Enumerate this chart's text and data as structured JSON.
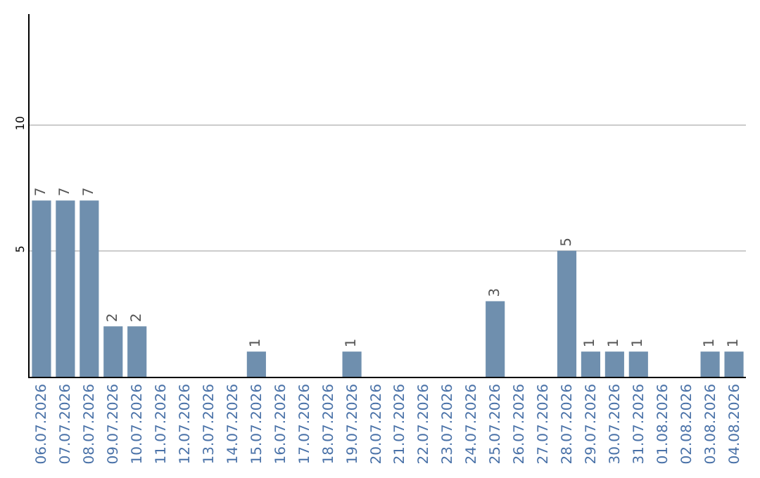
{
  "chart_data": {
    "type": "bar",
    "categories": [
      "06.07.2026",
      "07.07.2026",
      "08.07.2026",
      "09.07.2026",
      "10.07.2026",
      "11.07.2026",
      "12.07.2026",
      "13.07.2026",
      "14.07.2026",
      "15.07.2026",
      "16.07.2026",
      "17.07.2026",
      "18.07.2026",
      "19.07.2026",
      "20.07.2026",
      "21.07.2026",
      "22.07.2026",
      "23.07.2026",
      "24.07.2026",
      "25.07.2026",
      "26.07.2026",
      "27.07.2026",
      "28.07.2026",
      "29.07.2026",
      "30.07.2026",
      "31.07.2026",
      "01.08.2026",
      "02.08.2026",
      "03.08.2026",
      "04.08.2026"
    ],
    "values": [
      7,
      7,
      7,
      2,
      2,
      0,
      0,
      0,
      0,
      1,
      0,
      0,
      0,
      1,
      0,
      0,
      0,
      0,
      0,
      3,
      0,
      0,
      5,
      1,
      1,
      1,
      0,
      0,
      1,
      1
    ],
    "value_labels": [
      "7",
      "7",
      "7",
      "2",
      "2",
      null,
      null,
      null,
      null,
      "1",
      null,
      null,
      null,
      "1",
      null,
      null,
      null,
      null,
      null,
      "3",
      null,
      null,
      "5",
      "1",
      "1",
      "1",
      null,
      null,
      "1",
      "1"
    ],
    "color": "#6f8fae",
    "ylim": [
      0,
      14.4
    ],
    "yticks": [
      5,
      10
    ],
    "grid": "y",
    "legend": false
  }
}
